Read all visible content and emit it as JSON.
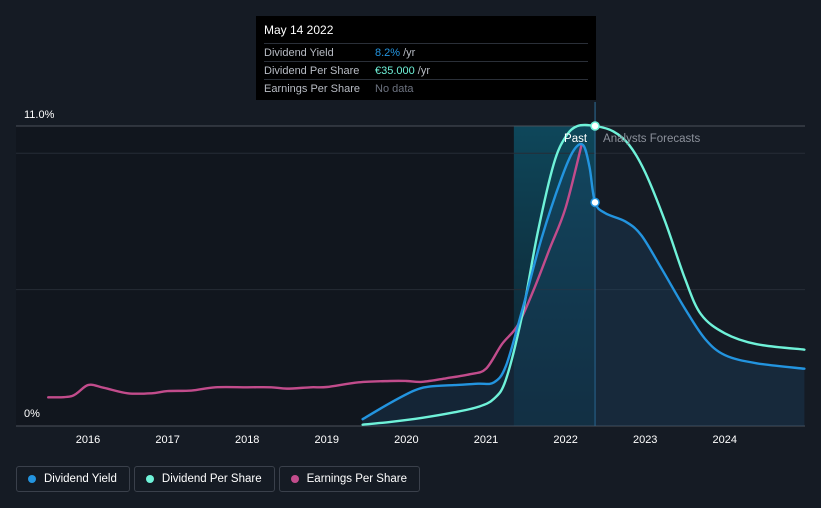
{
  "tooltip": {
    "date": "May 14 2022",
    "rows": [
      {
        "label": "Dividend Yield",
        "value": "8.2%",
        "unit": "/yr",
        "color": "#2394df"
      },
      {
        "label": "Dividend Per Share",
        "value": "€35.000",
        "unit": "/yr",
        "color": "#6ff2d9"
      },
      {
        "label": "Earnings Per Share",
        "value": "No data",
        "unit": "",
        "color": "#6d7380"
      }
    ]
  },
  "legend": [
    {
      "label": "Dividend Yield",
      "color": "#2394df"
    },
    {
      "label": "Dividend Per Share",
      "color": "#6ff2d9"
    },
    {
      "label": "Earnings Per Share",
      "color": "#c24c8c"
    }
  ],
  "chart_data": {
    "type": "line",
    "y_axis_labels": [
      "11.0%",
      "0%"
    ],
    "ylim": [
      0,
      11
    ],
    "xlim": [
      2015.5,
      2025.0
    ],
    "x_ticks": [
      "2016",
      "2017",
      "2018",
      "2019",
      "2020",
      "2021",
      "2022",
      "2023",
      "2024"
    ],
    "regions": {
      "past_label": "Past",
      "forecast_label": "Analysts Forecasts",
      "past_shade_start": 2021.35,
      "divider": 2022.37
    },
    "highlight_x": 2022.37,
    "series": [
      {
        "name": "Dividend Yield",
        "color": "#2394df",
        "points": [
          [
            2019.45,
            0.25
          ],
          [
            2019.8,
            0.85
          ],
          [
            2020.1,
            1.3
          ],
          [
            2020.3,
            1.45
          ],
          [
            2020.6,
            1.5
          ],
          [
            2020.9,
            1.55
          ],
          [
            2021.1,
            1.6
          ],
          [
            2021.25,
            2.2
          ],
          [
            2021.45,
            4.2
          ],
          [
            2021.7,
            6.9
          ],
          [
            2021.95,
            9.1
          ],
          [
            2022.1,
            10.1
          ],
          [
            2022.22,
            10.3
          ],
          [
            2022.3,
            9.5
          ],
          [
            2022.37,
            8.2
          ],
          [
            2022.5,
            7.8
          ],
          [
            2022.75,
            7.5
          ],
          [
            2022.95,
            7.0
          ],
          [
            2023.2,
            5.8
          ],
          [
            2023.5,
            4.3
          ],
          [
            2023.75,
            3.2
          ],
          [
            2024.0,
            2.6
          ],
          [
            2024.4,
            2.3
          ],
          [
            2025.0,
            2.1
          ]
        ]
      },
      {
        "name": "Dividend Per Share",
        "color": "#6ff2d9",
        "points": [
          [
            2019.45,
            0.05
          ],
          [
            2019.8,
            0.15
          ],
          [
            2020.2,
            0.3
          ],
          [
            2020.6,
            0.5
          ],
          [
            2020.9,
            0.7
          ],
          [
            2021.1,
            1.0
          ],
          [
            2021.25,
            1.7
          ],
          [
            2021.45,
            4.0
          ],
          [
            2021.65,
            7.1
          ],
          [
            2021.85,
            9.6
          ],
          [
            2022.0,
            10.6
          ],
          [
            2022.15,
            11.0
          ],
          [
            2022.37,
            11.0
          ],
          [
            2022.6,
            10.8
          ],
          [
            2022.8,
            10.3
          ],
          [
            2023.0,
            9.3
          ],
          [
            2023.25,
            7.5
          ],
          [
            2023.5,
            5.4
          ],
          [
            2023.7,
            4.1
          ],
          [
            2024.0,
            3.4
          ],
          [
            2024.4,
            3.0
          ],
          [
            2025.0,
            2.8
          ]
        ]
      },
      {
        "name": "Earnings Per Share",
        "color": "#c24c8c",
        "points": [
          [
            2015.5,
            1.05
          ],
          [
            2015.8,
            1.1
          ],
          [
            2016.0,
            1.5
          ],
          [
            2016.2,
            1.4
          ],
          [
            2016.5,
            1.2
          ],
          [
            2016.8,
            1.2
          ],
          [
            2017.0,
            1.28
          ],
          [
            2017.3,
            1.3
          ],
          [
            2017.6,
            1.42
          ],
          [
            2018.0,
            1.42
          ],
          [
            2018.3,
            1.42
          ],
          [
            2018.5,
            1.37
          ],
          [
            2018.8,
            1.42
          ],
          [
            2019.0,
            1.43
          ],
          [
            2019.4,
            1.6
          ],
          [
            2019.8,
            1.65
          ],
          [
            2020.0,
            1.65
          ],
          [
            2020.2,
            1.62
          ],
          [
            2020.5,
            1.75
          ],
          [
            2020.8,
            1.9
          ],
          [
            2021.0,
            2.1
          ],
          [
            2021.2,
            3.0
          ],
          [
            2021.4,
            3.7
          ],
          [
            2021.6,
            5.0
          ],
          [
            2021.8,
            6.5
          ],
          [
            2022.0,
            8.0
          ],
          [
            2022.2,
            10.3
          ]
        ]
      }
    ]
  }
}
